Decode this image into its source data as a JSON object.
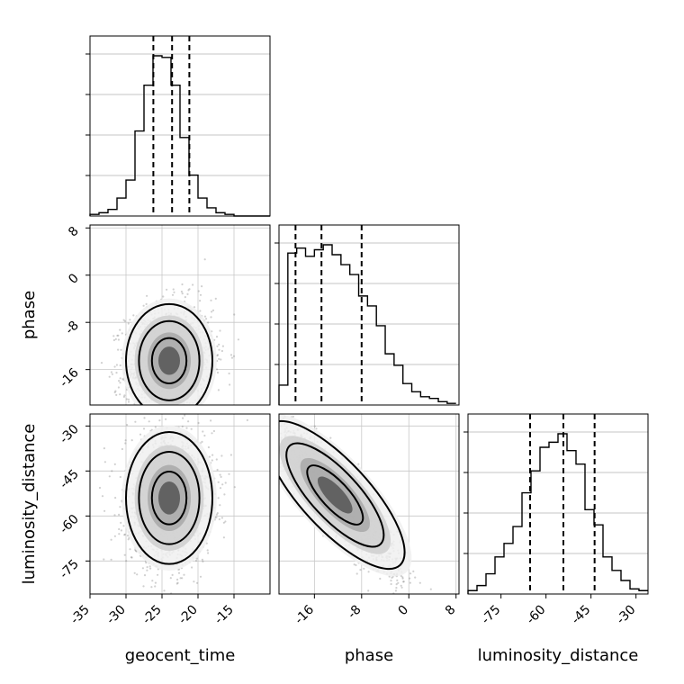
{
  "chart_data": {
    "type": "corner",
    "parameters": [
      "geocent_time",
      "phase",
      "luminosity_distance"
    ],
    "axis_labels": {
      "x": [
        "geocent_time",
        "phase",
        "luminosity_distance"
      ],
      "y": [
        "",
        "phase",
        "luminosity_distance"
      ]
    },
    "ranges": {
      "geocent_time": [
        -35,
        -10
      ],
      "phase": [
        -22,
        8.5
      ],
      "luminosity_distance": [
        -86,
        -26
      ]
    },
    "ticks": {
      "geocent_time": [
        -35,
        -30,
        -25,
        -20,
        -15
      ],
      "phase": [
        -16,
        -8,
        0,
        8
      ],
      "phase_diag": [
        -16,
        -8,
        0,
        8
      ],
      "luminosity_distance": [
        -30,
        -45,
        -60,
        -75
      ],
      "luminosity_distance_x": [
        -75,
        -60,
        -45,
        -30
      ]
    },
    "tick_labels": {
      "geocent_time": [
        "-35",
        "-30",
        "-25",
        "-20",
        "-15"
      ],
      "phase_y": [
        "8",
        "0",
        "-8",
        "-16"
      ],
      "phase_x": [
        "-16",
        "-8",
        "0",
        "8"
      ],
      "luminosity_distance_y": [
        "-30",
        "-45",
        "-60",
        "-75"
      ],
      "luminosity_distance_x": [
        "-75",
        "-60",
        "-45",
        "-30"
      ]
    },
    "quantiles": {
      "geocent_time": [
        -26.2,
        -23.6,
        -21.2
      ],
      "phase": [
        -19.2,
        -14.8,
        -8.0
      ],
      "luminosity_distance": [
        -65.3,
        -54.2,
        -43.8
      ]
    },
    "histograms": {
      "geocent_time": {
        "x0": -35,
        "dx": 1.25,
        "counts": [
          1,
          2,
          4,
          11,
          22,
          52,
          80,
          98,
          97,
          80,
          48,
          25,
          11,
          5,
          2,
          1,
          0,
          0,
          0,
          0
        ]
      },
      "phase": {
        "x0": -22,
        "dx": 1.5,
        "counts": [
          12,
          92,
          95,
          90,
          94,
          97,
          91,
          85,
          79,
          66,
          60,
          48,
          31,
          24,
          13,
          8,
          5,
          4,
          2,
          1
        ]
      },
      "luminosity_distance": {
        "x0": -86,
        "dx": 3,
        "counts": [
          2,
          5,
          12,
          22,
          30,
          40,
          60,
          73,
          87,
          90,
          95,
          85,
          77,
          50,
          41,
          22,
          14,
          8,
          3,
          2
        ]
      }
    },
    "joint_summaries": {
      "phase_vs_geocent_time": {
        "mean": [
          -24.0,
          -14.5
        ],
        "spread": [
          3.0,
          4.8
        ],
        "correlation": 0.1
      },
      "luminosity_distance_vs_geocent_time": {
        "mean": [
          -24.0,
          -54.0
        ],
        "spread": [
          3.0,
          11.0
        ],
        "correlation": 0.05
      },
      "luminosity_distance_vs_phase": {
        "mean": [
          -12.5,
          -53.0
        ],
        "spread": [
          5.5,
          13.0
        ],
        "correlation": -0.9
      }
    },
    "grid": true
  }
}
